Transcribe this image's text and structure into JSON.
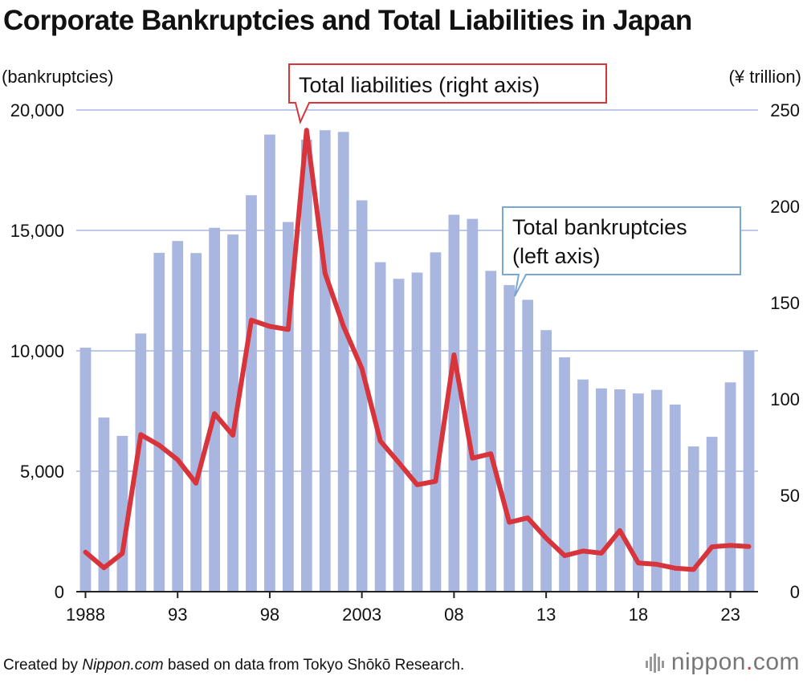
{
  "title": "Corporate Bankruptcies and Total Liabilities in Japan",
  "footer": {
    "prefix": "Created by ",
    "site": "Nippon.com",
    "suffix": " based on data from Tokyo Shōkō Research."
  },
  "logo": {
    "name": "nippon",
    "dot": ".",
    "tld": "com"
  },
  "chart_data": {
    "type": "bar+line",
    "title": "Corporate Bankruptcies and Total Liabilities in Japan",
    "left_axis_label": "(bankruptcies)",
    "right_axis_label": "(¥ trillion)",
    "left_ylim": [
      0,
      20000
    ],
    "right_ylim": [
      0,
      250
    ],
    "left_ticks": [
      "0",
      "5,000",
      "10,000",
      "15,000",
      "20,000"
    ],
    "left_tick_values": [
      0,
      5000,
      10000,
      15000,
      20000
    ],
    "right_ticks": [
      "0",
      "50",
      "100",
      "150",
      "200",
      "250"
    ],
    "right_tick_values": [
      0,
      50,
      100,
      150,
      200,
      250
    ],
    "x_tick_labels": [
      {
        "year": 1988,
        "label": "1988"
      },
      {
        "year": 1993,
        "label": "93"
      },
      {
        "year": 1998,
        "label": "98"
      },
      {
        "year": 2003,
        "label": "2003"
      },
      {
        "year": 2008,
        "label": "08"
      },
      {
        "year": 2013,
        "label": "13"
      },
      {
        "year": 2018,
        "label": "18"
      },
      {
        "year": 2023,
        "label": "23"
      }
    ],
    "years": [
      1988,
      1989,
      1990,
      1991,
      1992,
      1993,
      1994,
      1995,
      1996,
      1997,
      1998,
      1999,
      2000,
      2001,
      2002,
      2003,
      2004,
      2005,
      2006,
      2007,
      2008,
      2009,
      2010,
      2011,
      2012,
      2013,
      2014,
      2015,
      2016,
      2017,
      2018,
      2019,
      2020,
      2021,
      2022,
      2023,
      2024
    ],
    "series": [
      {
        "name": "Total bankruptcies (left axis)",
        "kind": "bar",
        "axis": "left",
        "color": "#a9b7e0",
        "values": [
          10130,
          7230,
          6470,
          10720,
          14070,
          14560,
          14060,
          15110,
          14830,
          16460,
          18980,
          15350,
          18770,
          19160,
          19090,
          16250,
          13680,
          12990,
          13250,
          14090,
          15650,
          15480,
          13320,
          12730,
          12120,
          10860,
          9730,
          8810,
          8440,
          8400,
          8230,
          8380,
          7770,
          6030,
          6430,
          8690,
          10000
        ]
      },
      {
        "name": "Total liabilities (right axis)",
        "kind": "line",
        "axis": "right",
        "color": "#d8343b",
        "values": [
          20.5,
          12.4,
          19.9,
          81.5,
          76.0,
          68.5,
          56.3,
          92.4,
          81.2,
          140.9,
          137.7,
          136.1,
          239.5,
          165.2,
          137.8,
          115.8,
          78.2,
          67.0,
          55.5,
          57.3,
          122.9,
          69.3,
          71.6,
          36.0,
          38.3,
          27.8,
          18.7,
          21.1,
          20.0,
          31.7,
          14.9,
          14.2,
          12.2,
          11.5,
          23.3,
          24.0,
          23.4
        ]
      }
    ],
    "annotations": [
      {
        "text": "Total liabilities (right axis)",
        "color": "#d8343b"
      },
      {
        "text_lines": [
          "Total bankruptcies",
          "(left axis)"
        ],
        "color": "#7aa6d6"
      }
    ],
    "grid": true
  },
  "colors": {
    "bar": "#a9b7e0",
    "line": "#d8343b",
    "grid": "#a9b7e0",
    "logo_dot": "#d23a3a"
  }
}
